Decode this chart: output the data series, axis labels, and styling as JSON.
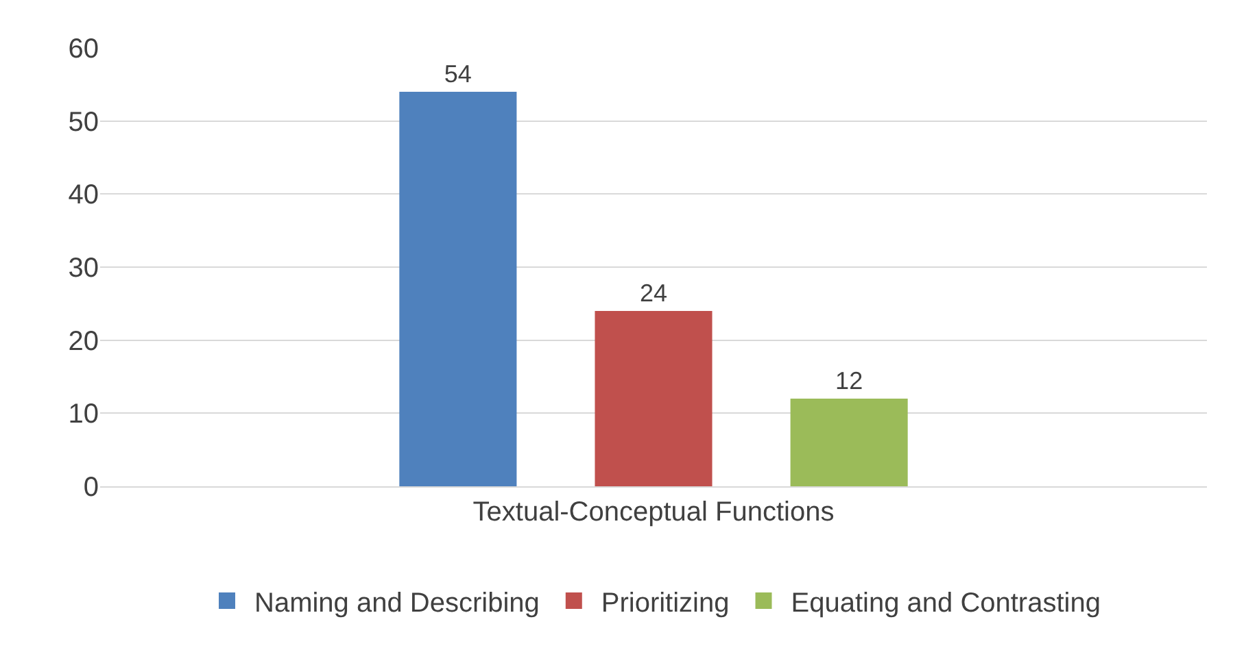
{
  "chart_data": {
    "type": "bar",
    "categories": [
      "Textual-Conceptual Functions"
    ],
    "series": [
      {
        "name": "Naming and Describing",
        "color": "#4f81bd",
        "values": [
          54
        ]
      },
      {
        "name": "Prioritizing",
        "color": "#c0504d",
        "values": [
          24
        ]
      },
      {
        "name": "Equating and Contrasting",
        "color": "#9bbb59",
        "values": [
          12
        ]
      }
    ],
    "ylim": [
      0,
      60
    ],
    "yticks": [
      0,
      10,
      20,
      30,
      40,
      50,
      60
    ],
    "grid": "y",
    "legend": "bottom",
    "data_labels": true
  }
}
